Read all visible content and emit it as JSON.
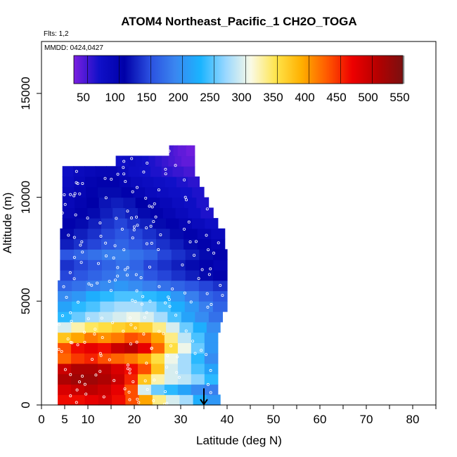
{
  "chart_data": {
    "type": "heatmap",
    "title": "ATOM4 Northeast_Pacific_1 CH2O_TOGA",
    "flights_label": "Flts: 1,2",
    "dates_label": "MMDD: 0424,0427",
    "xlabel": "Latitude (deg N)",
    "ylabel": "Altitude (m)",
    "xlim": [
      0,
      85
    ],
    "ylim": [
      0,
      17500
    ],
    "x_ticks": [
      0,
      5,
      10,
      20,
      30,
      40,
      50,
      60,
      70,
      80
    ],
    "y_ticks": [
      0,
      5000,
      10000,
      15000
    ],
    "colorbar": {
      "min": 35,
      "max": 555,
      "ticks": [
        50,
        100,
        150,
        200,
        250,
        300,
        350,
        400,
        450,
        500,
        550
      ],
      "colors": [
        "#7b1fe0",
        "#1010c8",
        "#0000a8",
        "#2a4fe0",
        "#3a86f0",
        "#1ab4ff",
        "#9ad8ff",
        "#fafae6",
        "#ffe44a",
        "#ffb000",
        "#ff5a00",
        "#ee0000",
        "#b50000",
        "#7a1010"
      ]
    },
    "marker": {
      "x": 35,
      "y": 800,
      "direction": "down"
    },
    "layers": [
      {
        "alt_min": 0,
        "alt_max": 500,
        "x_start": 3.5,
        "x_end": 38.5,
        "values": [
          470,
          470,
          480,
          490,
          470,
          440,
          400,
          340,
          300,
          280,
          230,
          210
        ]
      },
      {
        "alt_min": 500,
        "alt_max": 1000,
        "x_start": 3.5,
        "x_end": 38,
        "values": [
          490,
          500,
          510,
          500,
          480,
          440,
          300,
          260,
          240,
          220,
          200,
          190
        ]
      },
      {
        "alt_min": 1000,
        "alt_max": 1500,
        "x_start": 3.5,
        "x_end": 38,
        "values": [
          520,
          530,
          530,
          520,
          500,
          460,
          380,
          330,
          300,
          290,
          270,
          240
        ]
      },
      {
        "alt_min": 1500,
        "alt_max": 2000,
        "x_start": 3.5,
        "x_end": 38,
        "values": [
          500,
          520,
          520,
          510,
          490,
          470,
          440,
          380,
          300,
          280,
          250,
          220
        ]
      },
      {
        "alt_min": 2000,
        "alt_max": 2500,
        "x_start": 3.5,
        "x_end": 38,
        "values": [
          430,
          450,
          460,
          440,
          430,
          420,
          400,
          360,
          310,
          280,
          240,
          200
        ]
      },
      {
        "alt_min": 2500,
        "alt_max": 3000,
        "x_start": 3.5,
        "x_end": 38,
        "values": [
          440,
          470,
          480,
          470,
          500,
          510,
          480,
          430,
          360,
          310,
          260,
          210
        ]
      },
      {
        "alt_min": 3000,
        "alt_max": 3500,
        "x_start": 3.5,
        "x_end": 38,
        "values": [
          380,
          400,
          420,
          410,
          420,
          440,
          430,
          400,
          340,
          290,
          250,
          210
        ]
      },
      {
        "alt_min": 3500,
        "alt_max": 4000,
        "x_start": 3.5,
        "x_end": 38.5,
        "values": [
          300,
          330,
          350,
          360,
          370,
          380,
          370,
          340,
          300,
          260,
          230,
          200
        ]
      },
      {
        "alt_min": 4000,
        "alt_max": 4500,
        "x_start": 3.5,
        "x_end": 39,
        "values": [
          240,
          260,
          280,
          290,
          300,
          310,
          300,
          280,
          250,
          220,
          200,
          180
        ]
      },
      {
        "alt_min": 4500,
        "alt_max": 5000,
        "x_start": 3.5,
        "x_end": 40,
        "values": [
          220,
          240,
          250,
          270,
          280,
          280,
          270,
          250,
          230,
          210,
          190,
          170
        ]
      },
      {
        "alt_min": 5000,
        "alt_max": 5500,
        "x_start": 3.5,
        "x_end": 40,
        "values": [
          200,
          210,
          230,
          240,
          250,
          250,
          240,
          230,
          210,
          190,
          170,
          160
        ]
      },
      {
        "alt_min": 5500,
        "alt_max": 6000,
        "x_start": 3.5,
        "x_end": 40,
        "values": [
          170,
          180,
          190,
          200,
          210,
          200,
          190,
          180,
          170,
          160,
          150,
          140
        ]
      },
      {
        "alt_min": 6000,
        "alt_max": 6500,
        "x_start": 4,
        "x_end": 40,
        "values": [
          150,
          160,
          170,
          180,
          190,
          180,
          160,
          150,
          140,
          130,
          120,
          110
        ]
      },
      {
        "alt_min": 6500,
        "alt_max": 7000,
        "x_start": 4,
        "x_end": 40,
        "values": [
          140,
          150,
          160,
          170,
          180,
          170,
          150,
          140,
          130,
          120,
          110,
          100
        ]
      },
      {
        "alt_min": 7000,
        "alt_max": 7500,
        "x_start": 4,
        "x_end": 40,
        "values": [
          160,
          170,
          180,
          190,
          190,
          180,
          170,
          150,
          140,
          130,
          120,
          110
        ]
      },
      {
        "alt_min": 7500,
        "alt_max": 8000,
        "x_start": 4,
        "x_end": 39.5,
        "values": [
          130,
          140,
          150,
          160,
          170,
          160,
          150,
          140,
          130,
          120,
          110,
          100
        ]
      },
      {
        "alt_min": 8000,
        "alt_max": 8500,
        "x_start": 4,
        "x_end": 39.5,
        "values": [
          120,
          130,
          140,
          150,
          160,
          150,
          140,
          130,
          120,
          110,
          100,
          90
        ]
      },
      {
        "alt_min": 8500,
        "alt_max": 9000,
        "x_start": 4.5,
        "x_end": 38,
        "values": [
          110,
          120,
          130,
          140,
          150,
          140,
          130,
          120,
          110,
          100,
          90,
          80
        ]
      },
      {
        "alt_min": 9000,
        "alt_max": 9500,
        "x_start": 4.5,
        "x_end": 37,
        "values": [
          100,
          110,
          120,
          130,
          140,
          130,
          120,
          110,
          100,
          90,
          80,
          70
        ]
      },
      {
        "alt_min": 9500,
        "alt_max": 10000,
        "x_start": 4.5,
        "x_end": 36,
        "values": [
          95,
          105,
          115,
          125,
          130,
          125,
          115,
          105,
          95,
          85,
          80,
          70
        ]
      },
      {
        "alt_min": 10000,
        "alt_max": 10500,
        "x_start": 4.5,
        "x_end": 35,
        "values": [
          90,
          100,
          110,
          120,
          120,
          110,
          100,
          90,
          85,
          80,
          75,
          70
        ]
      },
      {
        "alt_min": 10500,
        "alt_max": 11000,
        "x_start": 4.5,
        "x_end": 34,
        "values": [
          85,
          95,
          105,
          110,
          110,
          100,
          90,
          85,
          80,
          75,
          70,
          65
        ]
      },
      {
        "alt_min": 11000,
        "alt_max": 11500,
        "x_start": 4.5,
        "x_end": 33,
        "values": [
          80,
          90,
          95,
          100,
          100,
          90,
          80,
          75,
          70,
          65,
          60,
          55
        ]
      },
      {
        "alt_min": 11500,
        "alt_max": 12000,
        "x_start": 16,
        "x_end": 33,
        "values": [
          75,
          80,
          85,
          80,
          75,
          70,
          65,
          60,
          55,
          50,
          45,
          45
        ]
      },
      {
        "alt_min": 12000,
        "alt_max": 12500,
        "x_start": 27.5,
        "x_end": 33,
        "values": [
          55,
          50,
          45,
          45,
          40,
          40
        ]
      }
    ]
  }
}
